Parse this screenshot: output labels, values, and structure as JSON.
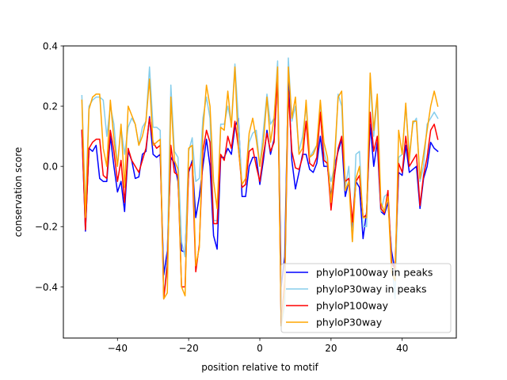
{
  "chart_data": {
    "type": "line",
    "title": "",
    "xlabel": "position relative to motif",
    "ylabel": "conservation score",
    "xlim": [
      -55.2,
      55.2
    ],
    "ylim": [
      -0.57,
      0.4
    ],
    "xticks": [
      -40,
      -20,
      0,
      20,
      40
    ],
    "xtick_labels": [
      "−40",
      "−20",
      "0",
      "20",
      "40"
    ],
    "yticks": [
      -0.4,
      -0.2,
      0.0,
      0.2,
      0.4
    ],
    "ytick_labels": [
      "−0.4",
      "−0.2",
      "0.0",
      "0.2",
      "0.4"
    ],
    "legend_position": "lower-right",
    "x": [
      -50,
      -49,
      -48,
      -47,
      -46,
      -45,
      -44,
      -43,
      -42,
      -41,
      -40,
      -39,
      -38,
      -37,
      -36,
      -35,
      -34,
      -33,
      -32,
      -31,
      -30,
      -29,
      -28,
      -27,
      -26,
      -25,
      -24,
      -23,
      -22,
      -21,
      -20,
      -19,
      -18,
      -17,
      -16,
      -15,
      -14,
      -13,
      -12,
      -11,
      -10,
      -9,
      -8,
      -7,
      -6,
      -5,
      -4,
      -3,
      -2,
      -1,
      0,
      1,
      2,
      3,
      4,
      5,
      6,
      7,
      8,
      9,
      10,
      11,
      12,
      13,
      14,
      15,
      16,
      17,
      18,
      19,
      20,
      21,
      22,
      23,
      24,
      25,
      26,
      27,
      28,
      29,
      30,
      31,
      32,
      33,
      34,
      35,
      36,
      37,
      38,
      39,
      40,
      41,
      42,
      43,
      44,
      45,
      46,
      47,
      48,
      49,
      50
    ],
    "series": [
      {
        "name": "phyloP100way in peaks",
        "color": "#0000ff",
        "values": [
          0.12,
          -0.215,
          0.06,
          0.05,
          0.07,
          -0.04,
          -0.05,
          -0.05,
          0.1,
          0.0,
          -0.085,
          -0.05,
          -0.15,
          0.05,
          0.02,
          -0.04,
          -0.035,
          0.04,
          0.05,
          0.165,
          0.04,
          0.03,
          0.04,
          -0.36,
          -0.28,
          0.03,
          0.01,
          -0.05,
          -0.28,
          -0.285,
          -0.02,
          0.02,
          -0.17,
          -0.1,
          0.0,
          0.09,
          0.0,
          -0.23,
          -0.275,
          0.03,
          0.03,
          0.06,
          0.04,
          0.13,
          0.16,
          -0.1,
          -0.1,
          0.0,
          0.03,
          0.03,
          -0.06,
          0.02,
          0.12,
          0.04,
          0.09,
          0.31,
          -0.4,
          -0.3,
          0.3,
          0.02,
          -0.075,
          -0.02,
          0.04,
          0.04,
          -0.01,
          -0.02,
          0.01,
          0.1,
          0.0,
          0.0,
          -0.1,
          0.0,
          0.05,
          0.09,
          -0.1,
          -0.05,
          -0.21,
          -0.05,
          -0.07,
          -0.24,
          -0.15,
          0.14,
          0.0,
          0.08,
          -0.15,
          -0.16,
          -0.12,
          -0.28,
          -0.35,
          -0.02,
          -0.03,
          0.07,
          -0.02,
          -0.01,
          0.0,
          -0.14,
          -0.04,
          0.0,
          0.08,
          0.06,
          0.05
        ]
      },
      {
        "name": "phyloP30way in peaks",
        "color": "#87ceeb",
        "values": [
          0.235,
          -0.15,
          0.2,
          0.22,
          0.23,
          0.23,
          0.22,
          0.1,
          0.2,
          0.14,
          0.0,
          0.13,
          0.04,
          0.13,
          0.16,
          0.14,
          0.07,
          0.13,
          0.15,
          0.33,
          0.13,
          0.13,
          0.12,
          -0.44,
          -0.3,
          0.27,
          0.05,
          0.03,
          -0.25,
          -0.3,
          0.05,
          0.095,
          -0.05,
          -0.04,
          0.16,
          0.23,
          0.16,
          -0.18,
          -0.18,
          0.14,
          0.14,
          0.2,
          0.14,
          0.34,
          0.15,
          -0.07,
          -0.06,
          0.08,
          0.11,
          0.12,
          0.0,
          0.12,
          0.24,
          0.14,
          0.16,
          0.35,
          -0.53,
          -0.46,
          0.36,
          0.15,
          0.2,
          0.05,
          0.1,
          0.2,
          0.03,
          0.05,
          0.07,
          0.2,
          0.05,
          0.0,
          -0.05,
          0.0,
          0.24,
          0.2,
          -0.07,
          0.0,
          -0.25,
          0.04,
          0.05,
          -0.2,
          -0.2,
          0.29,
          0.1,
          0.23,
          -0.15,
          -0.1,
          -0.09,
          -0.3,
          -0.44,
          0.03,
          0.04,
          0.2,
          0.04,
          0.14,
          0.16,
          -0.05,
          0.0,
          0.14,
          0.16,
          0.18,
          0.16
        ]
      },
      {
        "name": "phyloP100way",
        "color": "#ff0000",
        "values": [
          0.12,
          -0.21,
          0.06,
          0.08,
          0.09,
          0.09,
          -0.03,
          -0.04,
          0.12,
          0.05,
          -0.05,
          0.02,
          -0.12,
          0.06,
          0.02,
          0.0,
          -0.02,
          0.02,
          0.06,
          0.16,
          0.08,
          0.06,
          0.07,
          -0.44,
          -0.33,
          0.07,
          -0.02,
          -0.03,
          -0.4,
          -0.4,
          -0.01,
          0.01,
          -0.35,
          -0.26,
          0.05,
          0.12,
          0.08,
          -0.19,
          -0.19,
          0.04,
          0.02,
          0.1,
          0.06,
          0.15,
          0.06,
          -0.07,
          -0.06,
          0.05,
          0.06,
          0.0,
          -0.05,
          0.04,
          0.11,
          0.05,
          0.08,
          0.3,
          -0.52,
          -0.38,
          0.25,
          0.05,
          -0.005,
          -0.01,
          0.03,
          0.15,
          0.01,
          0.0,
          0.03,
          0.18,
          0.02,
          0.01,
          -0.145,
          -0.03,
          0.06,
          0.1,
          -0.05,
          -0.04,
          -0.185,
          -0.05,
          -0.03,
          -0.17,
          -0.16,
          0.18,
          0.05,
          0.1,
          -0.14,
          -0.155,
          -0.08,
          -0.32,
          -0.34,
          0.01,
          -0.02,
          0.1,
          0.0,
          0.02,
          0.04,
          -0.13,
          -0.03,
          0.03,
          0.12,
          0.14,
          0.09
        ]
      },
      {
        "name": "phyloP30way",
        "color": "#ffa500",
        "values": [
          0.22,
          -0.17,
          0.19,
          0.23,
          0.24,
          0.24,
          0.06,
          0.0,
          0.22,
          0.09,
          0.0,
          0.14,
          -0.07,
          0.2,
          0.17,
          0.14,
          0.07,
          0.1,
          0.15,
          0.29,
          0.07,
          0.08,
          0.09,
          -0.44,
          -0.42,
          0.23,
          0.02,
          -0.01,
          -0.4,
          -0.43,
          0.06,
          0.07,
          -0.33,
          -0.27,
          0.12,
          0.27,
          0.2,
          -0.05,
          -0.14,
          0.13,
          0.12,
          0.25,
          0.13,
          0.33,
          0.06,
          -0.06,
          -0.04,
          0.11,
          0.16,
          0.09,
          0.0,
          0.08,
          0.23,
          0.08,
          0.16,
          0.33,
          -0.53,
          -0.4,
          0.33,
          0.16,
          0.23,
          0.04,
          0.06,
          0.22,
          0.03,
          0.04,
          0.07,
          0.22,
          0.08,
          0.03,
          -0.12,
          0.03,
          0.23,
          0.25,
          -0.08,
          -0.05,
          -0.25,
          -0.04,
          0.0,
          -0.17,
          -0.17,
          0.31,
          0.12,
          0.24,
          -0.12,
          -0.15,
          -0.1,
          -0.35,
          -0.38,
          0.12,
          0.04,
          0.21,
          0.02,
          0.15,
          0.15,
          -0.04,
          0.04,
          0.12,
          0.2,
          0.25,
          0.2
        ]
      }
    ]
  }
}
